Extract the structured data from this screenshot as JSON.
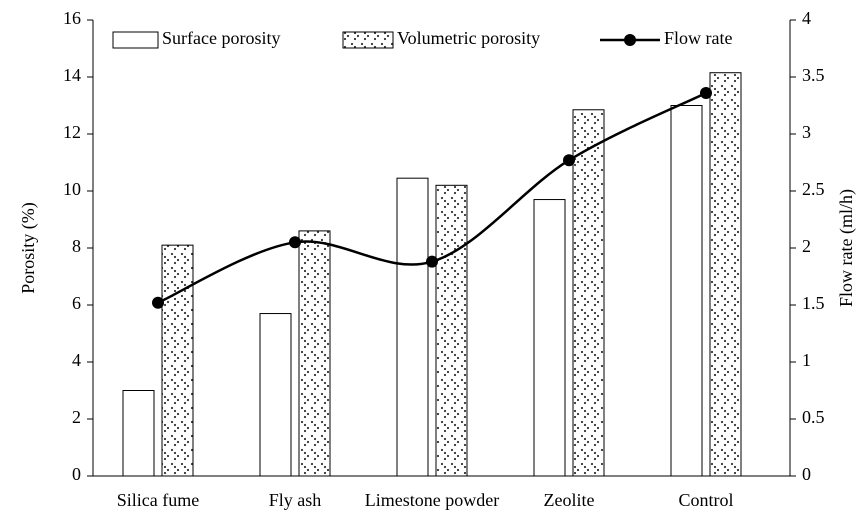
{
  "chart_data": {
    "type": "bar",
    "categories": [
      "Silica fume",
      "Fly ash",
      "Limestone powder",
      "Zeolite",
      "Control"
    ],
    "series": [
      {
        "name": "Surface porosity",
        "color": "#ffffff",
        "values": [
          3.0,
          5.7,
          10.45,
          9.7,
          13.0
        ]
      },
      {
        "name": "Volumetric porosity",
        "color": "#ffffff",
        "values": [
          8.1,
          8.6,
          10.2,
          12.85,
          14.15
        ]
      },
      {
        "name": "Flow rate",
        "color": "#000000",
        "axis": "y2",
        "values": [
          1.52,
          2.05,
          1.88,
          2.77,
          3.36
        ]
      }
    ],
    "ylabel": "Porosity (%)",
    "y2label": "Flow rate (ml/h)",
    "ylim": [
      0,
      16
    ],
    "yticks": [
      0,
      2,
      4,
      6,
      8,
      10,
      12,
      14,
      16
    ],
    "y2lim": [
      0,
      4
    ],
    "y2ticks": [
      0,
      0.5,
      1,
      1.5,
      2,
      2.5,
      3,
      3.5,
      4
    ],
    "legend": "top",
    "grid": false
  }
}
